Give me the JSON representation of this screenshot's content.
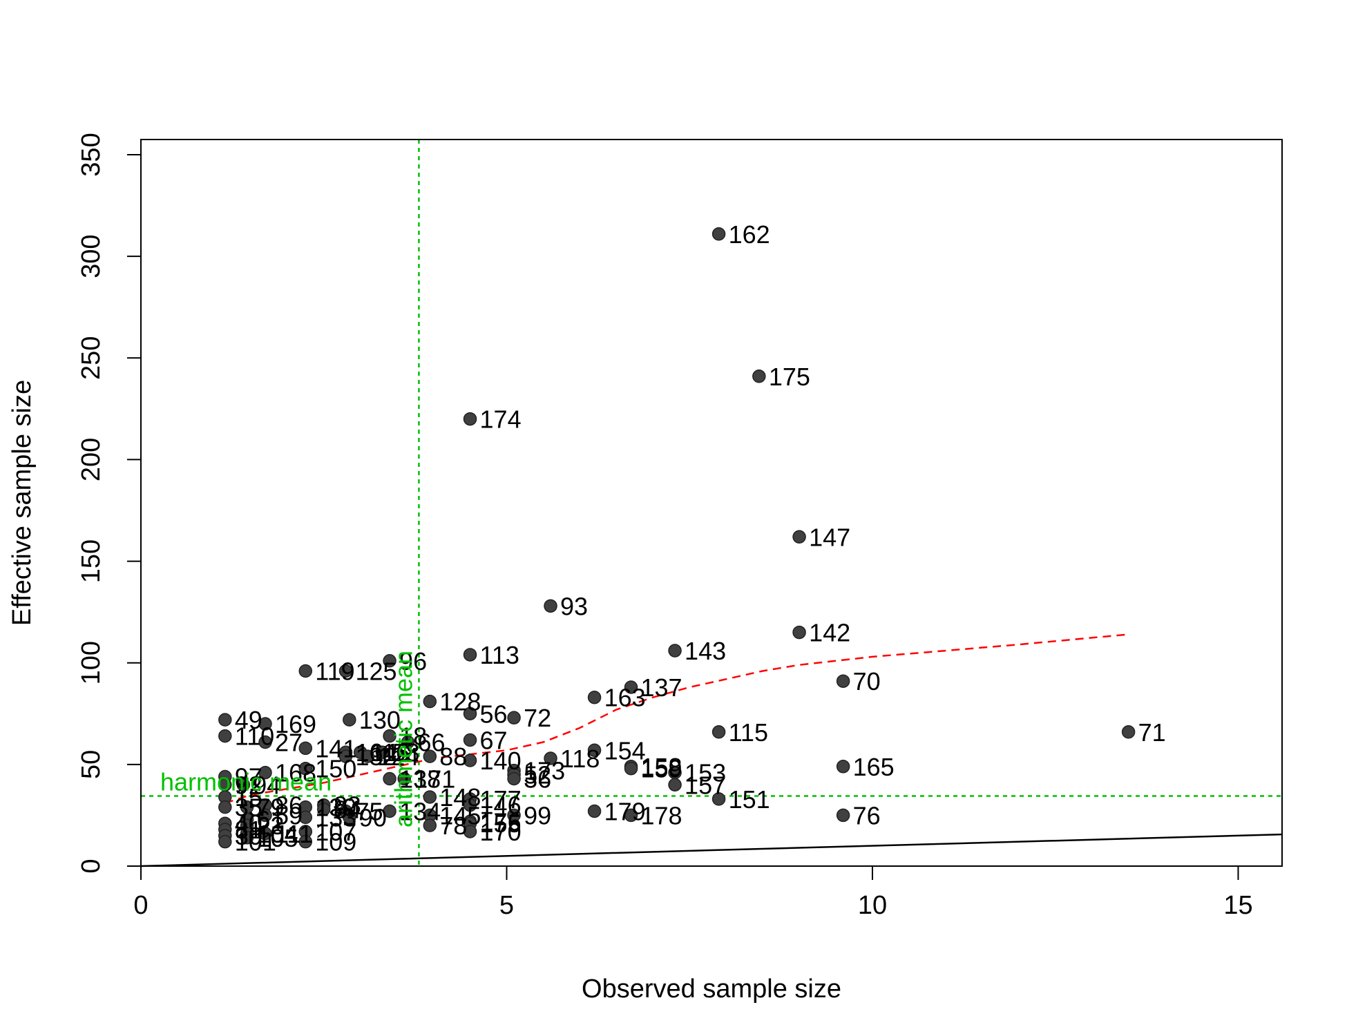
{
  "chart_data": {
    "type": "scatter",
    "title": "",
    "xlabel": "Observed sample size",
    "ylabel": "Effective sample size",
    "xlim": [
      0,
      15.6
    ],
    "ylim": [
      0,
      350
    ],
    "xticks": [
      0,
      5,
      10,
      15
    ],
    "yticks": [
      0,
      50,
      100,
      150,
      200,
      250,
      300,
      350
    ],
    "grid": false,
    "point_color": "#404040",
    "points": [
      {
        "label": "162",
        "x": 7.9,
        "y": 311
      },
      {
        "label": "175",
        "x": 8.45,
        "y": 241
      },
      {
        "label": "174",
        "x": 4.5,
        "y": 220
      },
      {
        "label": "147",
        "x": 9.0,
        "y": 162
      },
      {
        "label": "93",
        "x": 5.6,
        "y": 128
      },
      {
        "label": "142",
        "x": 9.0,
        "y": 115
      },
      {
        "label": "143",
        "x": 7.3,
        "y": 106
      },
      {
        "label": "113",
        "x": 4.5,
        "y": 104
      },
      {
        "label": "96",
        "x": 3.4,
        "y": 101
      },
      {
        "label": "119",
        "x": 2.25,
        "y": 96
      },
      {
        "label": "125",
        "x": 2.8,
        "y": 96
      },
      {
        "label": "70",
        "x": 9.6,
        "y": 91
      },
      {
        "label": "137",
        "x": 6.7,
        "y": 88
      },
      {
        "label": "163",
        "x": 6.2,
        "y": 83
      },
      {
        "label": "128",
        "x": 3.95,
        "y": 81
      },
      {
        "label": "56",
        "x": 4.5,
        "y": 75
      },
      {
        "label": "72",
        "x": 5.1,
        "y": 73
      },
      {
        "label": "49",
        "x": 1.15,
        "y": 72
      },
      {
        "label": "130",
        "x": 2.85,
        "y": 72
      },
      {
        "label": "169",
        "x": 1.7,
        "y": 70
      },
      {
        "label": "71",
        "x": 13.5,
        "y": 66
      },
      {
        "label": "115",
        "x": 7.9,
        "y": 66
      },
      {
        "label": "110",
        "x": 1.15,
        "y": 64
      },
      {
        "label": "18",
        "x": 3.4,
        "y": 64
      },
      {
        "label": "67",
        "x": 4.5,
        "y": 62
      },
      {
        "label": "27",
        "x": 1.7,
        "y": 61
      },
      {
        "label": "66",
        "x": 3.65,
        "y": 61
      },
      {
        "label": "141",
        "x": 2.25,
        "y": 58
      },
      {
        "label": "154",
        "x": 6.2,
        "y": 57
      },
      {
        "label": "164",
        "x": 2.8,
        "y": 56
      },
      {
        "label": "116",
        "x": 3.0,
        "y": 56
      },
      {
        "label": "58",
        "x": 3.3,
        "y": 56
      },
      {
        "label": "132",
        "x": 2.8,
        "y": 54
      },
      {
        "label": "124",
        "x": 3.1,
        "y": 54
      },
      {
        "label": "88",
        "x": 3.95,
        "y": 54
      },
      {
        "label": "118",
        "x": 5.6,
        "y": 53
      },
      {
        "label": "140",
        "x": 4.5,
        "y": 52
      },
      {
        "label": "158",
        "x": 6.7,
        "y": 49
      },
      {
        "label": "159",
        "x": 6.7,
        "y": 48
      },
      {
        "label": "165",
        "x": 9.6,
        "y": 49
      },
      {
        "label": "150",
        "x": 2.25,
        "y": 48
      },
      {
        "label": "173",
        "x": 5.1,
        "y": 47
      },
      {
        "label": "168",
        "x": 1.7,
        "y": 46
      },
      {
        "label": "153",
        "x": 7.3,
        "y": 46
      },
      {
        "label": "52",
        "x": 5.1,
        "y": 45
      },
      {
        "label": "36",
        "x": 5.1,
        "y": 43
      },
      {
        "label": "97",
        "x": 1.15,
        "y": 44
      },
      {
        "label": "138",
        "x": 3.4,
        "y": 43
      },
      {
        "label": "171",
        "x": 3.6,
        "y": 43
      },
      {
        "label": "157",
        "x": 7.3,
        "y": 40
      },
      {
        "label": "92",
        "x": 1.15,
        "y": 40
      },
      {
        "label": "94",
        "x": 1.4,
        "y": 40
      },
      {
        "label": "148",
        "x": 3.95,
        "y": 34
      },
      {
        "label": "151",
        "x": 7.9,
        "y": 33
      },
      {
        "label": "177",
        "x": 4.5,
        "y": 33
      },
      {
        "label": "15",
        "x": 1.15,
        "y": 34
      },
      {
        "label": "146",
        "x": 4.5,
        "y": 30
      },
      {
        "label": "86",
        "x": 1.7,
        "y": 30
      },
      {
        "label": "83",
        "x": 2.5,
        "y": 30
      },
      {
        "label": "139",
        "x": 2.25,
        "y": 29
      },
      {
        "label": "79",
        "x": 1.45,
        "y": 29
      },
      {
        "label": "84",
        "x": 2.5,
        "y": 28
      },
      {
        "label": "35",
        "x": 1.15,
        "y": 29
      },
      {
        "label": "179",
        "x": 6.2,
        "y": 27
      },
      {
        "label": "75",
        "x": 2.8,
        "y": 27
      },
      {
        "label": "134",
        "x": 3.4,
        "y": 27
      },
      {
        "label": "76",
        "x": 9.6,
        "y": 25
      },
      {
        "label": "178",
        "x": 6.7,
        "y": 25
      },
      {
        "label": "145",
        "x": 3.95,
        "y": 25
      },
      {
        "label": "99",
        "x": 5.1,
        "y": 25
      },
      {
        "label": "59",
        "x": 1.7,
        "y": 25
      },
      {
        "label": "90",
        "x": 2.85,
        "y": 24
      },
      {
        "label": "133",
        "x": 2.25,
        "y": 24
      },
      {
        "label": "61",
        "x": 1.45,
        "y": 23
      },
      {
        "label": "176",
        "x": 4.5,
        "y": 22
      },
      {
        "label": "155",
        "x": 4.5,
        "y": 21
      },
      {
        "label": "78",
        "x": 3.95,
        "y": 20
      },
      {
        "label": "40",
        "x": 1.15,
        "y": 21
      },
      {
        "label": "23",
        "x": 1.45,
        "y": 20
      },
      {
        "label": "170",
        "x": 4.5,
        "y": 17
      },
      {
        "label": "81",
        "x": 1.15,
        "y": 18
      },
      {
        "label": "107",
        "x": 2.25,
        "y": 17
      },
      {
        "label": "104",
        "x": 1.45,
        "y": 16
      },
      {
        "label": "111",
        "x": 1.7,
        "y": 16
      },
      {
        "label": "30",
        "x": 1.15,
        "y": 15
      },
      {
        "label": "105",
        "x": 1.45,
        "y": 14
      },
      {
        "label": "109",
        "x": 2.25,
        "y": 12
      },
      {
        "label": "101",
        "x": 1.15,
        "y": 12
      }
    ],
    "reference_line": {
      "x": [
        0,
        15.6
      ],
      "y": [
        0,
        15.6
      ],
      "color": "#000000"
    },
    "trend_line": {
      "color": "#ff0000",
      "style": "dashed",
      "x": [
        1.15,
        1.5,
        2.0,
        2.5,
        3.0,
        3.5,
        4.0,
        4.5,
        5.0,
        5.5,
        6.0,
        6.5,
        7.0,
        7.5,
        8.0,
        8.5,
        9.0,
        9.5,
        10.0,
        11.0,
        12.0,
        13.5
      ],
      "y": [
        31,
        35,
        38,
        41,
        45,
        49,
        53,
        55,
        57,
        61,
        68,
        77,
        83,
        88,
        92,
        96,
        99,
        101,
        103,
        106,
        109,
        114
      ]
    },
    "harmonic_mean": {
      "label": "harmonic mean",
      "value": 34.5,
      "color": "#00c000"
    },
    "arithmetic_mean": {
      "label": "arithmetic mean",
      "value": 3.8,
      "color": "#00c000"
    }
  }
}
